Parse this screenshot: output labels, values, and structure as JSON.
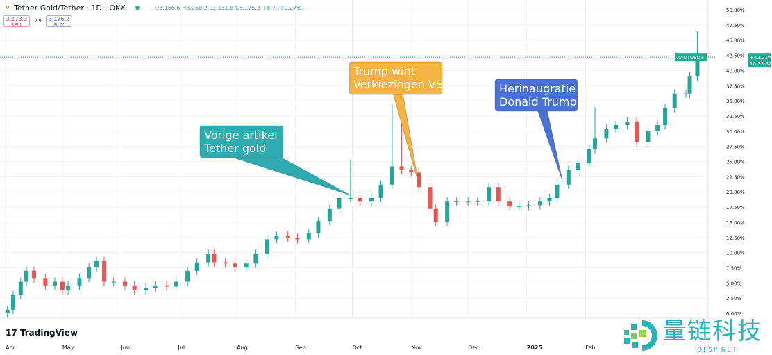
{
  "header": {
    "symbol_title": "Tether Gold/Tether · 1D · OKX",
    "ohlc": "O3,166.6 H3,260.2 L3,131.8 C3,175.3 +8.7 (+0.27%)",
    "sell_price": "3,173.3",
    "sell_label": "SELL",
    "spread": "2.9",
    "buy_price": "3,176.2",
    "buy_label": "BUY"
  },
  "branding": {
    "tradingview": "TradingView",
    "watermark_cn": "量链科技",
    "watermark_url": "QFSP.NET"
  },
  "price_tag": {
    "symbol": "XAUTUSDT",
    "change": "+42.21%",
    "countdown": "10:33:52",
    "color": "#22ab94"
  },
  "colors": {
    "up": "#26a69a",
    "down": "#ef5350",
    "teal_callout": "#2eabb0",
    "orange_callout": "#f5b342",
    "blue_callout": "#4a72d6"
  },
  "annotations": [
    {
      "line1": "Vorige artikel",
      "line2": "Tether gold",
      "target_date": "2024-09-30",
      "color": "#2eabb0"
    },
    {
      "line1": "Trump wint",
      "line2": "Verkiezingen VS",
      "target_date": "2024-11-05",
      "color": "#f5b342"
    },
    {
      "line1": "Herinaugratie",
      "line2": "Donald Trump",
      "target_date": "2025-01-20",
      "color": "#4a72d6"
    }
  ],
  "chart_data": {
    "type": "candlestick",
    "yscale": "percent",
    "ylim": [
      0,
      50
    ],
    "yticks": [
      "0.00%",
      "2.50%",
      "5.00%",
      "7.50%",
      "10.00%",
      "12.50%",
      "15.00%",
      "17.50%",
      "20.00%",
      "22.50%",
      "25.00%",
      "27.50%",
      "30.00%",
      "32.50%",
      "35.00%",
      "37.50%",
      "40.00%",
      "42.50%",
      "45.00%",
      "47.50%",
      "50.00%"
    ],
    "xticks": [
      {
        "label": "Apr",
        "date": "2024-04-01"
      },
      {
        "label": "May",
        "date": "2024-05-01"
      },
      {
        "label": "Jun",
        "date": "2024-06-01"
      },
      {
        "label": "Jul",
        "date": "2024-07-01"
      },
      {
        "label": "Aug",
        "date": "2024-08-01"
      },
      {
        "label": "Sep",
        "date": "2024-09-01"
      },
      {
        "label": "Oct",
        "date": "2024-10-01"
      },
      {
        "label": "Nov",
        "date": "2024-11-01"
      },
      {
        "label": "Dec",
        "date": "2024-12-01"
      },
      {
        "label": "2025",
        "date": "2025-01-01"
      },
      {
        "label": "Feb",
        "date": "2025-02-01"
      }
    ],
    "grid": true,
    "points": [
      [
        "2024-04-02",
        0.6
      ],
      [
        "2024-04-05",
        3.0
      ],
      [
        "2024-04-09",
        5.2
      ],
      [
        "2024-04-12",
        7.0
      ],
      [
        "2024-04-16",
        5.8
      ],
      [
        "2024-04-22",
        4.6
      ],
      [
        "2024-04-27",
        5.2
      ],
      [
        "2024-05-01",
        3.8
      ],
      [
        "2024-05-04",
        4.6
      ],
      [
        "2024-05-10",
        5.8
      ],
      [
        "2024-05-15",
        7.6
      ],
      [
        "2024-05-19",
        8.6
      ],
      [
        "2024-05-23",
        5.2
      ],
      [
        "2024-05-28",
        5.2
      ],
      [
        "2024-06-03",
        4.6
      ],
      [
        "2024-06-08",
        3.8
      ],
      [
        "2024-06-14",
        4.2
      ],
      [
        "2024-06-19",
        4.6
      ],
      [
        "2024-06-25",
        4.4
      ],
      [
        "2024-06-30",
        5.2
      ],
      [
        "2024-07-06",
        7.0
      ],
      [
        "2024-07-11",
        8.4
      ],
      [
        "2024-07-17",
        9.8
      ],
      [
        "2024-07-20",
        8.4
      ],
      [
        "2024-07-26",
        8.2
      ],
      [
        "2024-07-31",
        7.6
      ],
      [
        "2024-08-06",
        8.2
      ],
      [
        "2024-08-11",
        9.8
      ],
      [
        "2024-08-17",
        12.2
      ],
      [
        "2024-08-22",
        12.8
      ],
      [
        "2024-08-28",
        12.4
      ],
      [
        "2024-09-02",
        12.2
      ],
      [
        "2024-09-08",
        13.2
      ],
      [
        "2024-09-13",
        15.2
      ],
      [
        "2024-09-19",
        17.2
      ],
      [
        "2024-09-24",
        19.0
      ],
      [
        "2024-09-30",
        19.0
      ],
      [
        "2024-10-05",
        18.4
      ],
      [
        "2024-10-11",
        19.0
      ],
      [
        "2024-10-16",
        21.2
      ],
      [
        "2024-10-22",
        24.2
      ],
      [
        "2024-10-27",
        23.6
      ],
      [
        "2024-11-01",
        23.2
      ],
      [
        "2024-11-05",
        20.8
      ],
      [
        "2024-11-11",
        17.2
      ],
      [
        "2024-11-14",
        15.0
      ],
      [
        "2024-11-20",
        18.4
      ],
      [
        "2024-11-25",
        18.4
      ],
      [
        "2024-12-01",
        18.4
      ],
      [
        "2024-12-06",
        18.4
      ],
      [
        "2024-12-12",
        20.8
      ],
      [
        "2024-12-17",
        18.4
      ],
      [
        "2024-12-23",
        17.6
      ],
      [
        "2024-12-28",
        17.6
      ],
      [
        "2025-01-02",
        17.8
      ],
      [
        "2025-01-08",
        18.4
      ],
      [
        "2025-01-13",
        19.0
      ],
      [
        "2025-01-17",
        21.2
      ],
      [
        "2025-01-23",
        23.6
      ],
      [
        "2025-01-28",
        24.8
      ],
      [
        "2025-02-03",
        27.0
      ],
      [
        "2025-02-06",
        28.8
      ],
      [
        "2025-02-12",
        30.4
      ],
      [
        "2025-02-17",
        31.0
      ],
      [
        "2025-02-23",
        31.6
      ],
      [
        "2025-02-28",
        28.2
      ],
      [
        "2025-03-06",
        30.0
      ],
      [
        "2025-03-11",
        31.0
      ],
      [
        "2025-03-15",
        33.8
      ],
      [
        "2025-03-20",
        36.2
      ],
      [
        "2025-03-26",
        36.2
      ],
      [
        "2025-03-28",
        39.0
      ],
      [
        "2025-04-01",
        42.2
      ]
    ],
    "notable_highs": [
      [
        "2024-09-30",
        25.3
      ],
      [
        "2024-10-22",
        34.6
      ],
      [
        "2024-10-27",
        32.0
      ],
      [
        "2025-02-06",
        34.0
      ],
      [
        "2025-04-01",
        46.5
      ]
    ]
  }
}
